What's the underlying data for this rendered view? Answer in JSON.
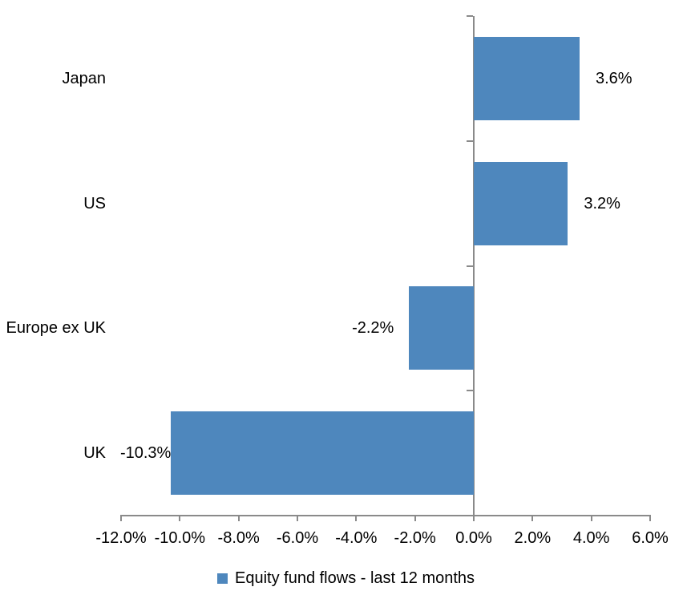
{
  "chart_data": {
    "type": "bar",
    "orientation": "horizontal",
    "title": "",
    "categories": [
      "Japan",
      "US",
      "Europe ex UK",
      "UK"
    ],
    "series": [
      {
        "name": "Equity fund flows - last 12 months",
        "values": [
          3.6,
          3.2,
          -2.2,
          -10.3
        ]
      }
    ],
    "data_labels": [
      "3.6%",
      "3.2%",
      "-2.2%",
      "-10.3%"
    ],
    "xlim": [
      -12,
      6
    ],
    "x_tick_values": [
      -12,
      -10,
      -8,
      -6,
      -4,
      -2,
      0,
      2,
      4,
      6
    ],
    "x_tick_labels": [
      "-12.0%",
      "-10.0%",
      "-8.0%",
      "-6.0%",
      "-4.0%",
      "-2.0%",
      "0.0%",
      "2.0%",
      "4.0%",
      "6.0%"
    ],
    "grid": false,
    "legend_position": "bottom",
    "colors": {
      "bar": "#4E87BD",
      "axis": "#8A8A8A",
      "text": "#000000",
      "background": "#FFFFFF"
    }
  },
  "legend": {
    "label": "Equity fund flows - last 12 months"
  }
}
